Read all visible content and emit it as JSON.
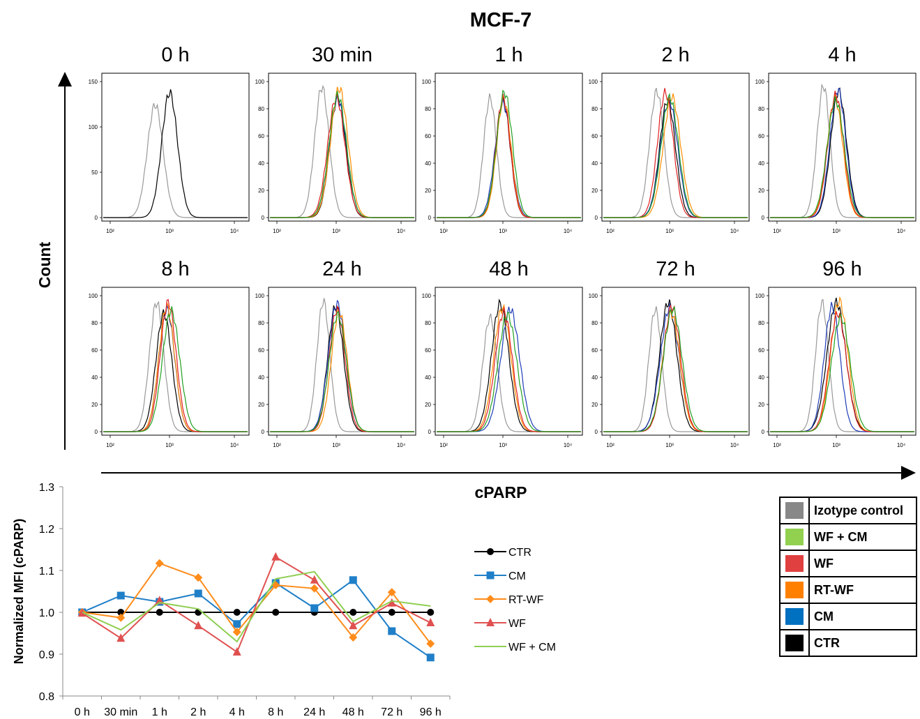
{
  "figure": {
    "title": "MCF-7",
    "y_axis_label": "Count",
    "x_axis_label": "cPARP"
  },
  "colors": {
    "isotype": "#999999",
    "ctr": "#000000",
    "cm": "#1f3db8",
    "rt_wf": "#ff8c00",
    "wf": "#e02020",
    "wf_cm": "#22a022"
  },
  "histogram_panels": [
    {
      "title": "0 h",
      "y_ticks": [
        "0",
        "50",
        "100",
        "150"
      ],
      "x_ticks": [
        "10²",
        "10³",
        "10⁴"
      ]
    },
    {
      "title": "30 min",
      "y_ticks": [
        "0",
        "20",
        "40",
        "60",
        "80",
        "100"
      ],
      "x_ticks": [
        "10²",
        "10³",
        "10⁴"
      ]
    },
    {
      "title": "1 h",
      "y_ticks": [
        "0",
        "20",
        "40",
        "60",
        "80",
        "100"
      ],
      "x_ticks": [
        "10²",
        "10³",
        "10⁴"
      ]
    },
    {
      "title": "2 h",
      "y_ticks": [
        "0",
        "20",
        "40",
        "60",
        "80",
        "100"
      ],
      "x_ticks": [
        "10²",
        "10³",
        "10⁴"
      ]
    },
    {
      "title": "4 h",
      "y_ticks": [
        "0",
        "20",
        "40",
        "60",
        "80",
        "100"
      ],
      "x_ticks": [
        "10²",
        "10³",
        "10⁴"
      ]
    },
    {
      "title": "8 h",
      "y_ticks": [
        "0",
        "20",
        "40",
        "60",
        "80",
        "100"
      ],
      "x_ticks": [
        "10²",
        "10³",
        "10⁴"
      ]
    },
    {
      "title": "24 h",
      "y_ticks": [
        "0",
        "20",
        "40",
        "60",
        "80",
        "100"
      ],
      "x_ticks": [
        "10²",
        "10³",
        "10⁴"
      ]
    },
    {
      "title": "48 h",
      "y_ticks": [
        "0",
        "20",
        "40",
        "60",
        "80",
        "100"
      ],
      "x_ticks": [
        "10²",
        "10³",
        "10⁴"
      ]
    },
    {
      "title": "72 h",
      "y_ticks": [
        "0",
        "20",
        "40",
        "60",
        "80",
        "100"
      ],
      "x_ticks": [
        "10²",
        "10³",
        "10⁴"
      ]
    },
    {
      "title": "96 h",
      "y_ticks": [
        "0",
        "20",
        "40",
        "60",
        "80",
        "100"
      ],
      "x_ticks": [
        "10²",
        "10³",
        "10⁴"
      ]
    }
  ],
  "legend_table": [
    {
      "label": "Izotype control",
      "color": "#888888"
    },
    {
      "label": "WF + CM",
      "color": "#92d050"
    },
    {
      "label": "WF",
      "color": "#e04040"
    },
    {
      "label": "RT-WF",
      "color": "#ff8000"
    },
    {
      "label": "CM",
      "color": "#0070c0"
    },
    {
      "label": "CTR",
      "color": "#000000"
    }
  ],
  "chart_data": {
    "type": "line",
    "ylabel": "Normalized MFI (cPARP)",
    "xlabel": "",
    "categories": [
      "0 h",
      "30 min",
      "1 h",
      "2 h",
      "4 h",
      "8 h",
      "24 h",
      "48 h",
      "72 h",
      "96 h"
    ],
    "ylim": [
      0.8,
      1.3
    ],
    "y_ticks": [
      "0.8",
      "0.9",
      "1.0",
      "1.1",
      "1.2",
      "1.3"
    ],
    "legend_position": "right",
    "series": [
      {
        "name": "CTR",
        "color": "#000000",
        "marker": "circle",
        "values": [
          1.0,
          1.0,
          1.0,
          1.0,
          1.0,
          1.0,
          1.0,
          1.0,
          1.0,
          1.0
        ]
      },
      {
        "name": "CM",
        "color": "#1f7fc8",
        "marker": "square",
        "values": [
          1.0,
          1.04,
          1.025,
          1.045,
          0.972,
          1.07,
          1.01,
          1.077,
          0.955,
          0.892
        ]
      },
      {
        "name": "RT-WF",
        "color": "#ff8c1a",
        "marker": "diamond",
        "values": [
          1.0,
          0.987,
          1.117,
          1.083,
          0.953,
          1.065,
          1.057,
          0.94,
          1.048,
          0.925
        ]
      },
      {
        "name": "WF",
        "color": "#e05050",
        "marker": "triangle",
        "values": [
          0.998,
          0.938,
          1.028,
          0.968,
          0.905,
          1.132,
          1.077,
          0.968,
          1.022,
          0.975
        ]
      },
      {
        "name": "WF + CM",
        "color": "#8fce52",
        "marker": "none",
        "values": [
          1.0,
          0.958,
          1.023,
          1.008,
          0.93,
          1.08,
          1.097,
          0.978,
          1.027,
          1.015
        ]
      }
    ]
  }
}
